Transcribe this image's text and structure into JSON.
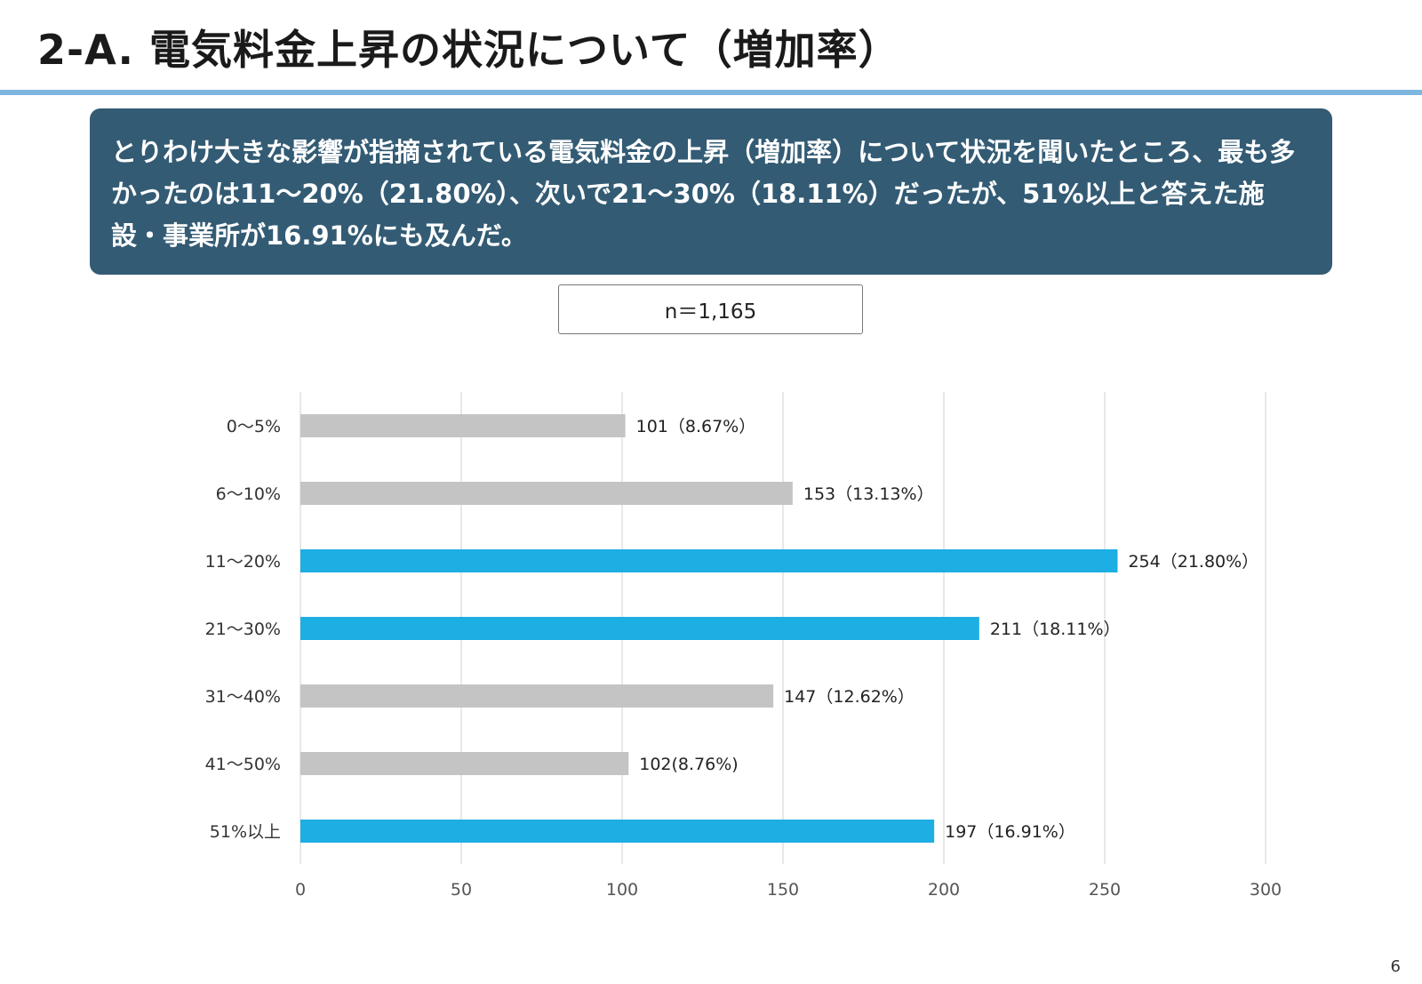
{
  "page": {
    "title": "2-A. 電気料金上昇の状況について（増加率）",
    "summary": "とりわけ大きな影響が指摘されている電気料金の上昇（増加率）について状況を聞いたところ、最も多かったのは11～20%（21.80%）、次いで21～30%（18.11%）だったが、51%以上と答えた施設・事業所が16.91%にも及んだ。",
    "n_label": "n＝1,165",
    "page_number": "6"
  },
  "colors": {
    "highlight": "#1daee3",
    "normal": "#c4c4c4",
    "grid": "#d9d9d9",
    "summary_bg": "#335b74",
    "title_rule": "#7fb6df"
  },
  "chart_data": {
    "type": "bar",
    "orientation": "horizontal",
    "categories": [
      "0～5%",
      "6～10%",
      "11～20%",
      "21～30%",
      "31～40%",
      "41～50%",
      "51%以上"
    ],
    "values": [
      101,
      153,
      254,
      211,
      147,
      102,
      197
    ],
    "data_labels": [
      "101（8.67%）",
      "153（13.13%）",
      "254（21.80%）",
      "211（18.11%）",
      "147（12.62%）",
      "102(8.76%)",
      "197（16.91%）"
    ],
    "highlighted": [
      false,
      false,
      true,
      true,
      false,
      false,
      true
    ],
    "xlim": [
      0,
      300
    ],
    "x_ticks": [
      0,
      50,
      100,
      150,
      200,
      250,
      300
    ],
    "grid": "vertical"
  }
}
